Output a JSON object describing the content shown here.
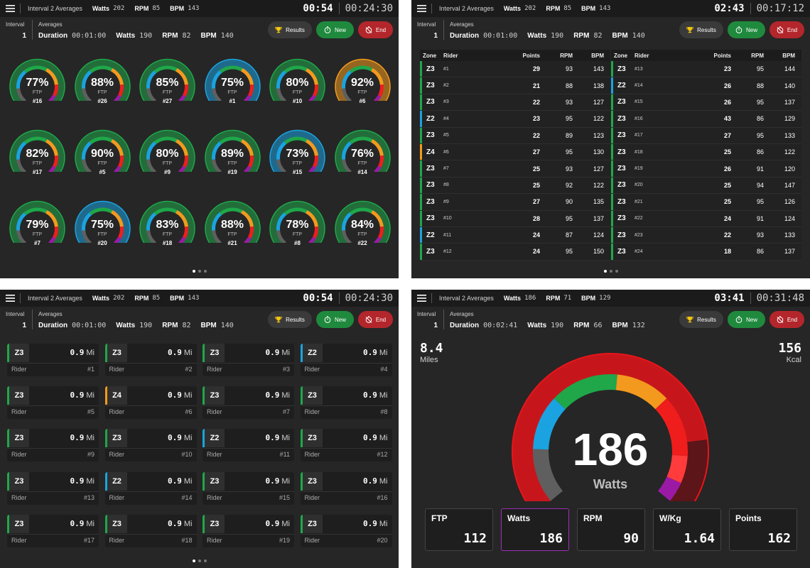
{
  "colors": {
    "gray": "#5f5f5f",
    "blue": "#1aa3e0",
    "green": "#1fa74a",
    "orange": "#f39a1e",
    "red": "#f01d1d",
    "purple": "#9b1aa5",
    "zone_green": "#1fa74a",
    "zone_blue": "#1aa3e0",
    "zone_orange": "#f39a1e"
  },
  "panels": [
    {
      "title": "Interval 2 Averages",
      "watts_label": "Watts",
      "watts": "202",
      "rpm_label": "RPM",
      "rpm": "85",
      "bpm_label": "BPM",
      "bpm": "143",
      "time": "00:54",
      "total": "00:24:30",
      "interval_caption": "Interval",
      "interval_num": "1",
      "avg_caption": "Averages",
      "dur_label": "Duration",
      "dur": "00:01:00",
      "a_watts_label": "Watts",
      "a_watts": "190",
      "a_rpm_label": "RPM",
      "a_rpm": "82",
      "a_bpm_label": "BPM",
      "a_bpm": "140",
      "results": "Results",
      "new": "New",
      "end": "End"
    },
    {
      "title": "Interval 2 Averages",
      "watts_label": "Watts",
      "watts": "202",
      "rpm_label": "RPM",
      "rpm": "85",
      "bpm_label": "BPM",
      "bpm": "143",
      "time": "02:43",
      "total": "00:17:12",
      "interval_caption": "Interval",
      "interval_num": "1",
      "avg_caption": "Averages",
      "dur_label": "Duration",
      "dur": "00:01:00",
      "a_watts_label": "Watts",
      "a_watts": "190",
      "a_rpm_label": "RPM",
      "a_rpm": "82",
      "a_bpm_label": "BPM",
      "a_bpm": "140",
      "results": "Results",
      "new": "New",
      "end": "End"
    },
    {
      "title": "Interval 2 Averages",
      "watts_label": "Watts",
      "watts": "202",
      "rpm_label": "RPM",
      "rpm": "85",
      "bpm_label": "BPM",
      "bpm": "143",
      "time": "00:54",
      "total": "00:24:30",
      "interval_caption": "Interval",
      "interval_num": "1",
      "avg_caption": "Averages",
      "dur_label": "Duration",
      "dur": "00:01:00",
      "a_watts_label": "Watts",
      "a_watts": "190",
      "a_rpm_label": "RPM",
      "a_rpm": "82",
      "a_bpm_label": "BPM",
      "a_bpm": "140",
      "results": "Results",
      "new": "New",
      "end": "End"
    },
    {
      "title": "Interval 2 Averages",
      "watts_label": "Watts",
      "watts": "186",
      "rpm_label": "RPM",
      "rpm": "71",
      "bpm_label": "BPM",
      "bpm": "129",
      "time": "03:41",
      "total": "00:31:48",
      "interval_caption": "Interval",
      "interval_num": "1",
      "avg_caption": "Averages",
      "dur_label": "Duration",
      "dur": "00:02:41",
      "a_watts_label": "Watts",
      "a_watts": "190",
      "a_rpm_label": "RPM",
      "a_rpm": "66",
      "a_bpm_label": "BPM",
      "a_bpm": "132",
      "results": "Results",
      "new": "New",
      "end": "End"
    }
  ],
  "gauges": [
    {
      "pct": "77%",
      "rider": "#16",
      "zone": "green"
    },
    {
      "pct": "88%",
      "rider": "#26",
      "zone": "green"
    },
    {
      "pct": "85%",
      "rider": "#27",
      "zone": "green"
    },
    {
      "pct": "75%",
      "rider": "#1",
      "zone": "blue"
    },
    {
      "pct": "80%",
      "rider": "#10",
      "zone": "green"
    },
    {
      "pct": "92%",
      "rider": "#6",
      "zone": "orange"
    },
    {
      "pct": "82%",
      "rider": "#17",
      "zone": "green"
    },
    {
      "pct": "90%",
      "rider": "#5",
      "zone": "green"
    },
    {
      "pct": "80%",
      "rider": "#9",
      "zone": "green"
    },
    {
      "pct": "89%",
      "rider": "#19",
      "zone": "green"
    },
    {
      "pct": "73%",
      "rider": "#15",
      "zone": "blue"
    },
    {
      "pct": "76%",
      "rider": "#14",
      "zone": "green"
    },
    {
      "pct": "79%",
      "rider": "#7",
      "zone": "green"
    },
    {
      "pct": "75%",
      "rider": "#20",
      "zone": "blue"
    },
    {
      "pct": "83%",
      "rider": "#18",
      "zone": "green"
    },
    {
      "pct": "88%",
      "rider": "#21",
      "zone": "green"
    },
    {
      "pct": "78%",
      "rider": "#8",
      "zone": "green"
    },
    {
      "pct": "84%",
      "rider": "#22",
      "zone": "green"
    }
  ],
  "gauge_ftp_label": "FTP",
  "table": {
    "headers": {
      "zone": "Zone",
      "rider": "Rider",
      "points": "Points",
      "rpm": "RPM",
      "bpm": "BPM"
    },
    "left": [
      {
        "zone": "Z3",
        "rider": "#1",
        "points": "29",
        "rpm": "93",
        "bpm": "143",
        "c": "green"
      },
      {
        "zone": "Z3",
        "rider": "#2",
        "points": "21",
        "rpm": "88",
        "bpm": "138",
        "c": "green"
      },
      {
        "zone": "Z3",
        "rider": "#3",
        "points": "22",
        "rpm": "93",
        "bpm": "127",
        "c": "green"
      },
      {
        "zone": "Z2",
        "rider": "#4",
        "points": "23",
        "rpm": "95",
        "bpm": "122",
        "c": "blue"
      },
      {
        "zone": "Z3",
        "rider": "#5",
        "points": "22",
        "rpm": "89",
        "bpm": "123",
        "c": "green"
      },
      {
        "zone": "Z4",
        "rider": "#6",
        "points": "27",
        "rpm": "95",
        "bpm": "130",
        "c": "orange"
      },
      {
        "zone": "Z3",
        "rider": "#7",
        "points": "25",
        "rpm": "93",
        "bpm": "127",
        "c": "green"
      },
      {
        "zone": "Z3",
        "rider": "#8",
        "points": "25",
        "rpm": "92",
        "bpm": "122",
        "c": "green"
      },
      {
        "zone": "Z3",
        "rider": "#9",
        "points": "27",
        "rpm": "90",
        "bpm": "135",
        "c": "green"
      },
      {
        "zone": "Z3",
        "rider": "#10",
        "points": "28",
        "rpm": "95",
        "bpm": "137",
        "c": "green"
      },
      {
        "zone": "Z2",
        "rider": "#11",
        "points": "24",
        "rpm": "87",
        "bpm": "124",
        "c": "blue"
      },
      {
        "zone": "Z3",
        "rider": "#12",
        "points": "24",
        "rpm": "95",
        "bpm": "150",
        "c": "green"
      }
    ],
    "right": [
      {
        "zone": "Z3",
        "rider": "#13",
        "points": "23",
        "rpm": "95",
        "bpm": "144",
        "c": "green"
      },
      {
        "zone": "Z2",
        "rider": "#14",
        "points": "26",
        "rpm": "88",
        "bpm": "140",
        "c": "blue"
      },
      {
        "zone": "Z3",
        "rider": "#15",
        "points": "26",
        "rpm": "95",
        "bpm": "137",
        "c": "green"
      },
      {
        "zone": "Z3",
        "rider": "#16",
        "points": "43",
        "rpm": "86",
        "bpm": "129",
        "c": "green"
      },
      {
        "zone": "Z3",
        "rider": "#17",
        "points": "27",
        "rpm": "95",
        "bpm": "133",
        "c": "green"
      },
      {
        "zone": "Z3",
        "rider": "#18",
        "points": "25",
        "rpm": "86",
        "bpm": "122",
        "c": "green"
      },
      {
        "zone": "Z3",
        "rider": "#19",
        "points": "26",
        "rpm": "91",
        "bpm": "120",
        "c": "green"
      },
      {
        "zone": "Z3",
        "rider": "#20",
        "points": "25",
        "rpm": "94",
        "bpm": "147",
        "c": "green"
      },
      {
        "zone": "Z3",
        "rider": "#21",
        "points": "25",
        "rpm": "95",
        "bpm": "126",
        "c": "green"
      },
      {
        "zone": "Z3",
        "rider": "#22",
        "points": "24",
        "rpm": "91",
        "bpm": "124",
        "c": "green"
      },
      {
        "zone": "Z3",
        "rider": "#23",
        "points": "22",
        "rpm": "93",
        "bpm": "133",
        "c": "green"
      },
      {
        "zone": "Z3",
        "rider": "#24",
        "points": "18",
        "rpm": "86",
        "bpm": "137",
        "c": "green"
      }
    ]
  },
  "cards": {
    "rider_label": "Rider",
    "unit": "Mi",
    "items": [
      {
        "zone": "Z3",
        "dist": "0.9",
        "num": "#1",
        "c": "green"
      },
      {
        "zone": "Z3",
        "dist": "0.9",
        "num": "#2",
        "c": "green"
      },
      {
        "zone": "Z3",
        "dist": "0.9",
        "num": "#3",
        "c": "green"
      },
      {
        "zone": "Z2",
        "dist": "0.9",
        "num": "#4",
        "c": "blue"
      },
      {
        "zone": "Z3",
        "dist": "0.9",
        "num": "#5",
        "c": "green"
      },
      {
        "zone": "Z4",
        "dist": "0.9",
        "num": "#6",
        "c": "orange"
      },
      {
        "zone": "Z3",
        "dist": "0.9",
        "num": "#7",
        "c": "green"
      },
      {
        "zone": "Z3",
        "dist": "0.9",
        "num": "#8",
        "c": "green"
      },
      {
        "zone": "Z3",
        "dist": "0.9",
        "num": "#9",
        "c": "green"
      },
      {
        "zone": "Z3",
        "dist": "0.9",
        "num": "#10",
        "c": "green"
      },
      {
        "zone": "Z2",
        "dist": "0.9",
        "num": "#11",
        "c": "blue"
      },
      {
        "zone": "Z3",
        "dist": "0.9",
        "num": "#12",
        "c": "green"
      },
      {
        "zone": "Z3",
        "dist": "0.9",
        "num": "#13",
        "c": "green"
      },
      {
        "zone": "Z2",
        "dist": "0.9",
        "num": "#14",
        "c": "blue"
      },
      {
        "zone": "Z3",
        "dist": "0.9",
        "num": "#15",
        "c": "green"
      },
      {
        "zone": "Z3",
        "dist": "0.9",
        "num": "#16",
        "c": "green"
      },
      {
        "zone": "Z3",
        "dist": "0.9",
        "num": "#17",
        "c": "green"
      },
      {
        "zone": "Z3",
        "dist": "0.9",
        "num": "#18",
        "c": "green"
      },
      {
        "zone": "Z3",
        "dist": "0.9",
        "num": "#19",
        "c": "green"
      },
      {
        "zone": "Z3",
        "dist": "0.9",
        "num": "#20",
        "c": "green"
      }
    ]
  },
  "single": {
    "miles": "8.4",
    "miles_label": "Miles",
    "kcal": "156",
    "kcal_label": "Kcal",
    "watts": "186",
    "watts_label": "Watts",
    "tiles": [
      {
        "label": "FTP",
        "value": "112"
      },
      {
        "label": "Watts",
        "value": "186"
      },
      {
        "label": "RPM",
        "value": "90"
      },
      {
        "label": "W/Kg",
        "value": "1.64"
      },
      {
        "label": "Points",
        "value": "162"
      }
    ]
  }
}
